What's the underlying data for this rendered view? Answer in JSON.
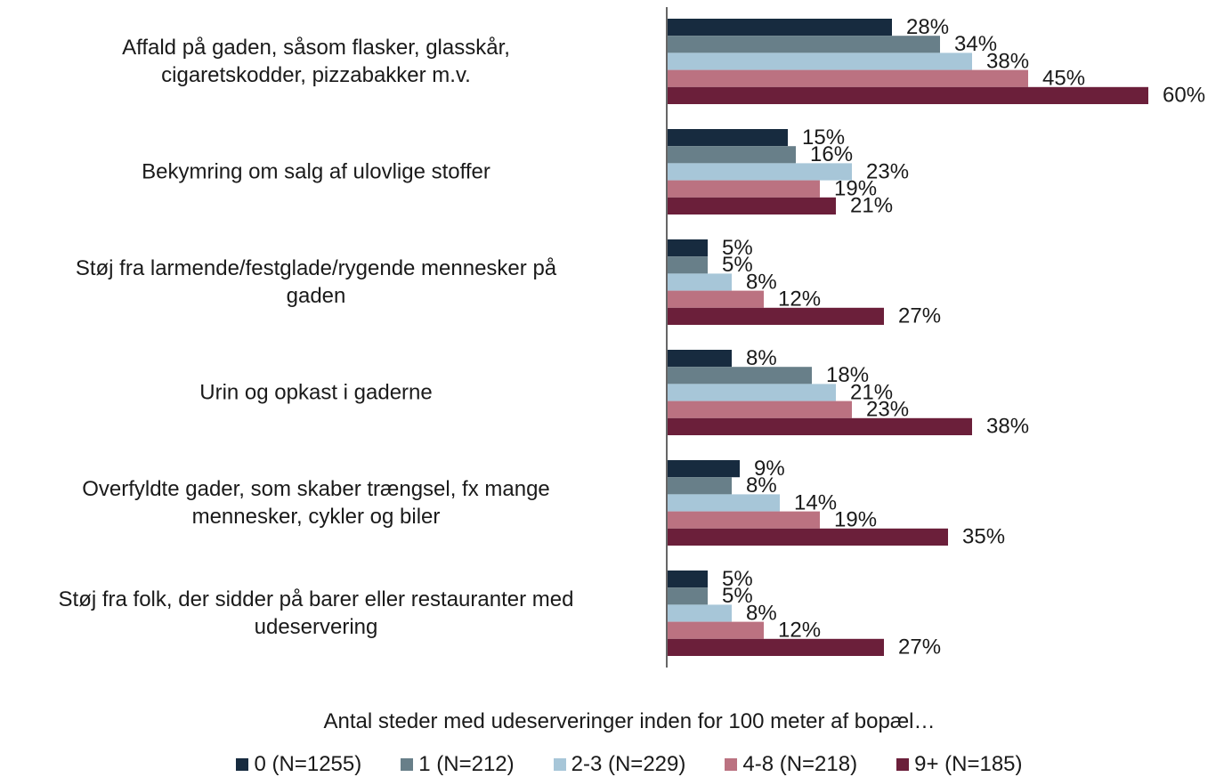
{
  "chart_data": {
    "type": "hbar",
    "categories": [
      "Affald på gaden, såsom flasker, glasskår,\ncigaretskodder, pizzabakker m.v.",
      "Bekymring om salg af ulovlige stoffer",
      "Støj fra larmende/festglade/rygende mennesker på\ngaden",
      "Urin og opkast i gaderne",
      "Overfyldte gader, som skaber trængsel, fx mange\nmennesker, cykler og biler",
      "Støj fra folk, der sidder på barer eller restauranter med\nudeservering"
    ],
    "legend_title": "Antal steder med udeserveringer inden for 100 meter af bopæl…",
    "xlim": [
      0,
      60
    ],
    "series": [
      {
        "name": "0 (N=1255)",
        "color": "#172b3f",
        "values": [
          28,
          15,
          5,
          8,
          9,
          5
        ],
        "value_labels": [
          "28%",
          "15%",
          "5%",
          "8%",
          "9%",
          "5%"
        ]
      },
      {
        "name": "1 (N=212)",
        "color": "#687f89",
        "values": [
          34,
          16,
          5,
          18,
          8,
          5
        ],
        "value_labels": [
          "34%",
          "16%",
          "5%",
          "18%",
          "8%",
          "5%"
        ]
      },
      {
        "name": "2-3 (N=229)",
        "color": "#a7c6d8",
        "values": [
          38,
          23,
          8,
          21,
          14,
          8
        ],
        "value_labels": [
          "38%",
          "23%",
          "8%",
          "21%",
          "14%",
          "8%"
        ]
      },
      {
        "name": "4-8 (N=218)",
        "color": "#bb7281",
        "values": [
          45,
          19,
          12,
          23,
          19,
          12
        ],
        "value_labels": [
          "45%",
          "19%",
          "12%",
          "23%",
          "19%",
          "12%"
        ]
      },
      {
        "name": "9+ (N=185)",
        "color": "#6b1f3a",
        "values": [
          60,
          21,
          27,
          38,
          35,
          27
        ],
        "value_labels": [
          "60%",
          "21%",
          "27%",
          "38%",
          "35%",
          "27%"
        ]
      }
    ]
  }
}
